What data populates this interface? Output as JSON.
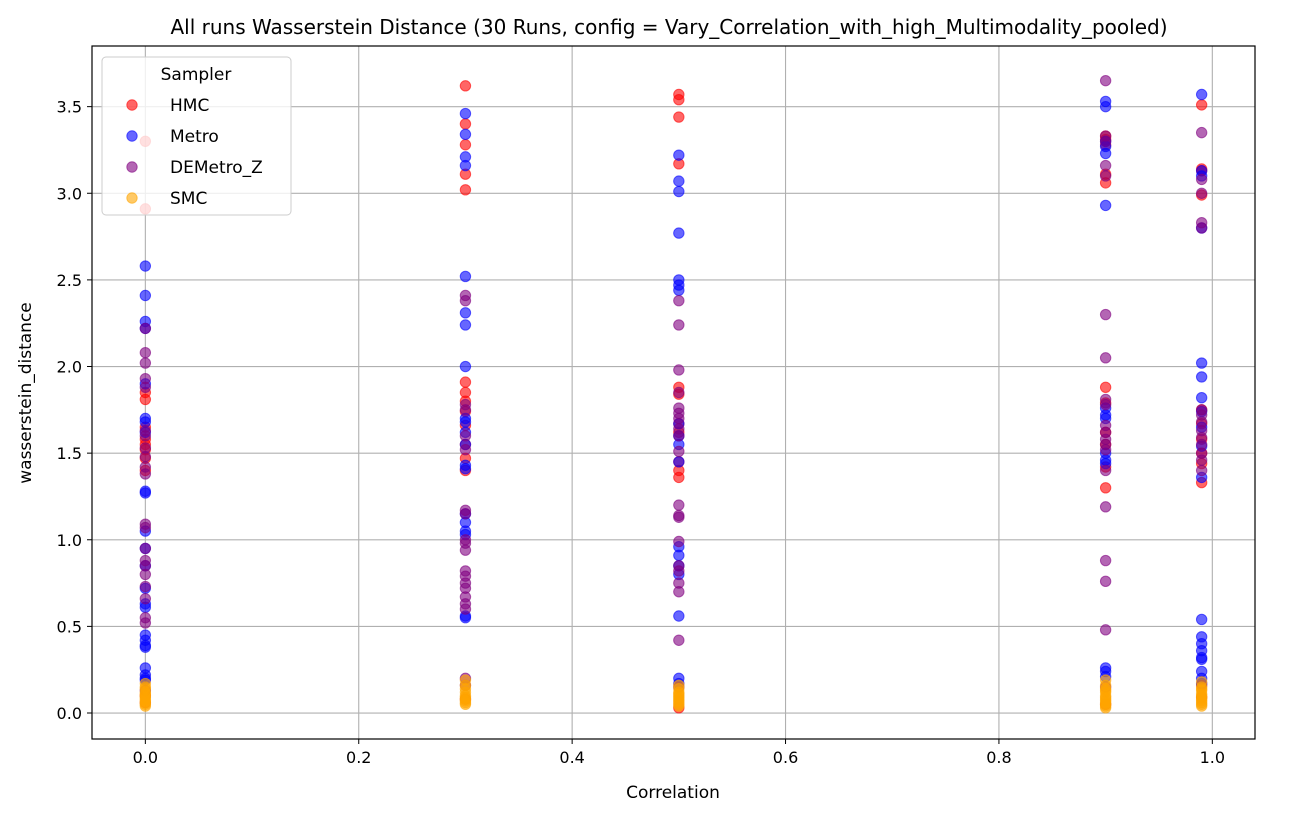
{
  "chart_data": {
    "type": "scatter",
    "title": "All runs Wasserstein Distance (30 Runs, config = Vary_Correlation_with_high_Multimodality_pooled)",
    "xlabel": "Correlation",
    "ylabel": "wasserstein_distance",
    "xlim": [
      -0.05,
      1.04
    ],
    "ylim": [
      -0.15,
      3.85
    ],
    "xticks": [
      0.0,
      0.2,
      0.4,
      0.6,
      0.8,
      1.0
    ],
    "xtick_labels": [
      "0.0",
      "0.2",
      "0.4",
      "0.6",
      "0.8",
      "1.0"
    ],
    "yticks": [
      0.0,
      0.5,
      1.0,
      1.5,
      2.0,
      2.5,
      3.0,
      3.5
    ],
    "ytick_labels": [
      "0.0",
      "0.5",
      "1.0",
      "1.5",
      "2.0",
      "2.5",
      "3.0",
      "3.5"
    ],
    "grid": true,
    "legend": {
      "title": "Sampler",
      "location": "top-left"
    },
    "series": [
      {
        "name": "HMC",
        "color": "#ff0000",
        "points": [
          [
            0.0,
            3.3
          ],
          [
            0.0,
            2.91
          ],
          [
            0.0,
            1.85
          ],
          [
            0.0,
            1.81
          ],
          [
            0.0,
            1.65
          ],
          [
            0.0,
            1.58
          ],
          [
            0.0,
            1.55
          ],
          [
            0.0,
            1.52
          ],
          [
            0.0,
            1.47
          ],
          [
            0.0,
            1.4
          ],
          [
            0.0,
            0.1
          ],
          [
            0.0,
            0.06
          ],
          [
            0.3,
            3.62
          ],
          [
            0.3,
            3.4
          ],
          [
            0.3,
            3.28
          ],
          [
            0.3,
            3.11
          ],
          [
            0.3,
            3.02
          ],
          [
            0.3,
            1.91
          ],
          [
            0.3,
            1.85
          ],
          [
            0.3,
            1.8
          ],
          [
            0.3,
            1.74
          ],
          [
            0.3,
            1.66
          ],
          [
            0.3,
            1.55
          ],
          [
            0.3,
            1.47
          ],
          [
            0.3,
            1.4
          ],
          [
            0.3,
            0.08
          ],
          [
            0.5,
            3.57
          ],
          [
            0.5,
            3.54
          ],
          [
            0.5,
            3.44
          ],
          [
            0.5,
            3.17
          ],
          [
            0.5,
            1.88
          ],
          [
            0.5,
            1.84
          ],
          [
            0.5,
            1.67
          ],
          [
            0.5,
            1.62
          ],
          [
            0.5,
            1.45
          ],
          [
            0.5,
            1.4
          ],
          [
            0.5,
            1.36
          ],
          [
            0.5,
            0.03
          ],
          [
            0.9,
            3.33
          ],
          [
            0.9,
            3.31
          ],
          [
            0.9,
            3.28
          ],
          [
            0.9,
            3.11
          ],
          [
            0.9,
            3.06
          ],
          [
            0.9,
            1.88
          ],
          [
            0.9,
            1.79
          ],
          [
            0.9,
            1.62
          ],
          [
            0.9,
            1.55
          ],
          [
            0.9,
            1.42
          ],
          [
            0.9,
            1.3
          ],
          [
            0.9,
            0.05
          ],
          [
            0.99,
            3.51
          ],
          [
            0.99,
            3.14
          ],
          [
            0.99,
            3.13
          ],
          [
            0.99,
            2.99
          ],
          [
            0.99,
            1.75
          ],
          [
            0.99,
            1.67
          ],
          [
            0.99,
            1.58
          ],
          [
            0.99,
            1.5
          ],
          [
            0.99,
            1.44
          ],
          [
            0.99,
            1.33
          ],
          [
            0.99,
            0.09
          ]
        ]
      },
      {
        "name": "Metro",
        "color": "#0000ff",
        "points": [
          [
            0.0,
            2.58
          ],
          [
            0.0,
            2.41
          ],
          [
            0.0,
            2.26
          ],
          [
            0.0,
            2.22
          ],
          [
            0.0,
            1.9
          ],
          [
            0.0,
            1.7
          ],
          [
            0.0,
            1.68
          ],
          [
            0.0,
            1.62
          ],
          [
            0.0,
            1.28
          ],
          [
            0.0,
            1.27
          ],
          [
            0.0,
            1.05
          ],
          [
            0.0,
            0.95
          ],
          [
            0.0,
            0.85
          ],
          [
            0.0,
            0.72
          ],
          [
            0.0,
            0.63
          ],
          [
            0.0,
            0.61
          ],
          [
            0.0,
            0.45
          ],
          [
            0.0,
            0.42
          ],
          [
            0.0,
            0.39
          ],
          [
            0.0,
            0.38
          ],
          [
            0.0,
            0.26
          ],
          [
            0.0,
            0.22
          ],
          [
            0.0,
            0.2
          ],
          [
            0.0,
            0.19
          ],
          [
            0.3,
            3.46
          ],
          [
            0.3,
            3.34
          ],
          [
            0.3,
            3.21
          ],
          [
            0.3,
            3.16
          ],
          [
            0.3,
            2.52
          ],
          [
            0.3,
            2.31
          ],
          [
            0.3,
            2.24
          ],
          [
            0.3,
            2.0
          ],
          [
            0.3,
            1.7
          ],
          [
            0.3,
            1.68
          ],
          [
            0.3,
            1.62
          ],
          [
            0.3,
            1.55
          ],
          [
            0.3,
            1.43
          ],
          [
            0.3,
            1.41
          ],
          [
            0.3,
            1.15
          ],
          [
            0.3,
            1.1
          ],
          [
            0.3,
            1.05
          ],
          [
            0.3,
            1.03
          ],
          [
            0.3,
            0.56
          ],
          [
            0.3,
            0.55
          ],
          [
            0.5,
            3.22
          ],
          [
            0.5,
            3.07
          ],
          [
            0.5,
            3.01
          ],
          [
            0.5,
            2.77
          ],
          [
            0.5,
            2.5
          ],
          [
            0.5,
            2.47
          ],
          [
            0.5,
            2.44
          ],
          [
            0.5,
            1.67
          ],
          [
            0.5,
            1.6
          ],
          [
            0.5,
            1.55
          ],
          [
            0.5,
            1.45
          ],
          [
            0.5,
            0.96
          ],
          [
            0.5,
            0.91
          ],
          [
            0.5,
            0.85
          ],
          [
            0.5,
            0.8
          ],
          [
            0.5,
            0.56
          ],
          [
            0.5,
            0.2
          ],
          [
            0.5,
            0.17
          ],
          [
            0.9,
            3.53
          ],
          [
            0.9,
            3.5
          ],
          [
            0.9,
            3.3
          ],
          [
            0.9,
            3.27
          ],
          [
            0.9,
            3.23
          ],
          [
            0.9,
            2.93
          ],
          [
            0.9,
            1.76
          ],
          [
            0.9,
            1.72
          ],
          [
            0.9,
            1.7
          ],
          [
            0.9,
            1.5
          ],
          [
            0.9,
            1.46
          ],
          [
            0.9,
            1.44
          ],
          [
            0.9,
            0.26
          ],
          [
            0.9,
            0.24
          ],
          [
            0.9,
            0.21
          ],
          [
            0.99,
            3.57
          ],
          [
            0.99,
            3.13
          ],
          [
            0.99,
            3.1
          ],
          [
            0.99,
            2.8
          ],
          [
            0.99,
            2.02
          ],
          [
            0.99,
            1.94
          ],
          [
            0.99,
            1.82
          ],
          [
            0.99,
            1.74
          ],
          [
            0.99,
            1.65
          ],
          [
            0.99,
            1.54
          ],
          [
            0.99,
            1.36
          ],
          [
            0.99,
            0.54
          ],
          [
            0.99,
            0.44
          ],
          [
            0.99,
            0.4
          ],
          [
            0.99,
            0.36
          ],
          [
            0.99,
            0.32
          ],
          [
            0.99,
            0.31
          ],
          [
            0.99,
            0.24
          ],
          [
            0.99,
            0.2
          ],
          [
            0.99,
            0.17
          ]
        ]
      },
      {
        "name": "DEMetro_Z",
        "color": "#800080",
        "points": [
          [
            0.0,
            2.22
          ],
          [
            0.0,
            2.08
          ],
          [
            0.0,
            2.02
          ],
          [
            0.0,
            1.93
          ],
          [
            0.0,
            1.88
          ],
          [
            0.0,
            1.63
          ],
          [
            0.0,
            1.6
          ],
          [
            0.0,
            1.53
          ],
          [
            0.0,
            1.48
          ],
          [
            0.0,
            1.42
          ],
          [
            0.0,
            1.38
          ],
          [
            0.0,
            1.09
          ],
          [
            0.0,
            1.07
          ],
          [
            0.0,
            0.95
          ],
          [
            0.0,
            0.88
          ],
          [
            0.0,
            0.85
          ],
          [
            0.0,
            0.8
          ],
          [
            0.0,
            0.73
          ],
          [
            0.0,
            0.66
          ],
          [
            0.0,
            0.55
          ],
          [
            0.0,
            0.52
          ],
          [
            0.0,
            0.13
          ],
          [
            0.3,
            2.41
          ],
          [
            0.3,
            2.38
          ],
          [
            0.3,
            1.78
          ],
          [
            0.3,
            1.75
          ],
          [
            0.3,
            1.6
          ],
          [
            0.3,
            1.52
          ],
          [
            0.3,
            1.17
          ],
          [
            0.3,
            1.15
          ],
          [
            0.3,
            1.0
          ],
          [
            0.3,
            0.98
          ],
          [
            0.3,
            0.94
          ],
          [
            0.3,
            0.82
          ],
          [
            0.3,
            0.79
          ],
          [
            0.3,
            0.75
          ],
          [
            0.3,
            0.72
          ],
          [
            0.3,
            0.67
          ],
          [
            0.3,
            0.63
          ],
          [
            0.3,
            0.6
          ],
          [
            0.3,
            0.2
          ],
          [
            0.3,
            0.16
          ],
          [
            0.5,
            2.38
          ],
          [
            0.5,
            2.24
          ],
          [
            0.5,
            1.98
          ],
          [
            0.5,
            1.85
          ],
          [
            0.5,
            1.76
          ],
          [
            0.5,
            1.73
          ],
          [
            0.5,
            1.7
          ],
          [
            0.5,
            1.64
          ],
          [
            0.5,
            1.6
          ],
          [
            0.5,
            1.51
          ],
          [
            0.5,
            1.2
          ],
          [
            0.5,
            1.14
          ],
          [
            0.5,
            1.13
          ],
          [
            0.5,
            0.99
          ],
          [
            0.5,
            0.85
          ],
          [
            0.5,
            0.82
          ],
          [
            0.5,
            0.75
          ],
          [
            0.5,
            0.7
          ],
          [
            0.5,
            0.42
          ],
          [
            0.5,
            0.15
          ],
          [
            0.9,
            3.65
          ],
          [
            0.9,
            3.33
          ],
          [
            0.9,
            3.3
          ],
          [
            0.9,
            3.16
          ],
          [
            0.9,
            3.1
          ],
          [
            0.9,
            2.3
          ],
          [
            0.9,
            2.05
          ],
          [
            0.9,
            1.81
          ],
          [
            0.9,
            1.78
          ],
          [
            0.9,
            1.66
          ],
          [
            0.9,
            1.62
          ],
          [
            0.9,
            1.58
          ],
          [
            0.9,
            1.55
          ],
          [
            0.9,
            1.52
          ],
          [
            0.9,
            1.4
          ],
          [
            0.9,
            1.19
          ],
          [
            0.9,
            0.88
          ],
          [
            0.9,
            0.76
          ],
          [
            0.9,
            0.48
          ],
          [
            0.9,
            0.15
          ],
          [
            0.99,
            3.35
          ],
          [
            0.99,
            3.08
          ],
          [
            0.99,
            3.0
          ],
          [
            0.99,
            2.83
          ],
          [
            0.99,
            2.8
          ],
          [
            0.99,
            1.75
          ],
          [
            0.99,
            1.72
          ],
          [
            0.99,
            1.68
          ],
          [
            0.99,
            1.63
          ],
          [
            0.99,
            1.59
          ],
          [
            0.99,
            1.55
          ],
          [
            0.99,
            1.5
          ],
          [
            0.99,
            1.46
          ],
          [
            0.99,
            1.4
          ],
          [
            0.99,
            0.16
          ]
        ]
      },
      {
        "name": "SMC",
        "color": "#ffa500",
        "points": [
          [
            0.0,
            0.17
          ],
          [
            0.0,
            0.15
          ],
          [
            0.0,
            0.14
          ],
          [
            0.0,
            0.12
          ],
          [
            0.0,
            0.11
          ],
          [
            0.0,
            0.1
          ],
          [
            0.0,
            0.09
          ],
          [
            0.0,
            0.08
          ],
          [
            0.0,
            0.07
          ],
          [
            0.0,
            0.06
          ],
          [
            0.0,
            0.05
          ],
          [
            0.0,
            0.04
          ],
          [
            0.3,
            0.19
          ],
          [
            0.3,
            0.16
          ],
          [
            0.3,
            0.14
          ],
          [
            0.3,
            0.12
          ],
          [
            0.3,
            0.1
          ],
          [
            0.3,
            0.09
          ],
          [
            0.3,
            0.08
          ],
          [
            0.3,
            0.07
          ],
          [
            0.3,
            0.06
          ],
          [
            0.3,
            0.05
          ],
          [
            0.5,
            0.16
          ],
          [
            0.5,
            0.14
          ],
          [
            0.5,
            0.12
          ],
          [
            0.5,
            0.11
          ],
          [
            0.5,
            0.1
          ],
          [
            0.5,
            0.09
          ],
          [
            0.5,
            0.08
          ],
          [
            0.5,
            0.07
          ],
          [
            0.5,
            0.06
          ],
          [
            0.5,
            0.05
          ],
          [
            0.5,
            0.04
          ],
          [
            0.9,
            0.19
          ],
          [
            0.9,
            0.16
          ],
          [
            0.9,
            0.14
          ],
          [
            0.9,
            0.13
          ],
          [
            0.9,
            0.12
          ],
          [
            0.9,
            0.1
          ],
          [
            0.9,
            0.09
          ],
          [
            0.9,
            0.08
          ],
          [
            0.9,
            0.07
          ],
          [
            0.9,
            0.06
          ],
          [
            0.9,
            0.05
          ],
          [
            0.9,
            0.04
          ],
          [
            0.9,
            0.03
          ],
          [
            0.99,
            0.18
          ],
          [
            0.99,
            0.15
          ],
          [
            0.99,
            0.14
          ],
          [
            0.99,
            0.13
          ],
          [
            0.99,
            0.11
          ],
          [
            0.99,
            0.1
          ],
          [
            0.99,
            0.09
          ],
          [
            0.99,
            0.08
          ],
          [
            0.99,
            0.07
          ],
          [
            0.99,
            0.06
          ],
          [
            0.99,
            0.05
          ],
          [
            0.99,
            0.04
          ]
        ]
      }
    ]
  }
}
